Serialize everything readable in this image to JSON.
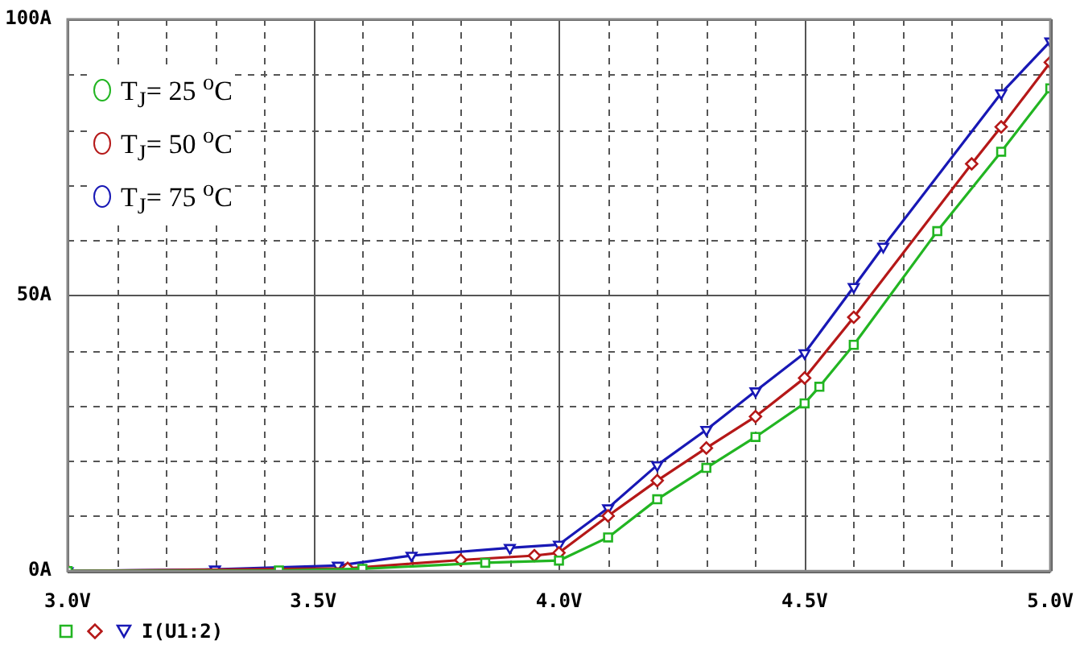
{
  "chart_data": {
    "type": "line",
    "xlim": [
      3.0,
      5.0
    ],
    "xticks": [
      {
        "value": 3.0,
        "label": "3.0V"
      },
      {
        "value": 3.1,
        "label": null
      },
      {
        "value": 3.2,
        "label": null
      },
      {
        "value": 3.3,
        "label": null
      },
      {
        "value": 3.4,
        "label": null
      },
      {
        "value": 3.5,
        "label": "3.5V"
      },
      {
        "value": 3.6,
        "label": null
      },
      {
        "value": 3.7,
        "label": null
      },
      {
        "value": 3.8,
        "label": null
      },
      {
        "value": 3.9,
        "label": null
      },
      {
        "value": 4.0,
        "label": "4.0V"
      },
      {
        "value": 4.1,
        "label": null
      },
      {
        "value": 4.2,
        "label": null
      },
      {
        "value": 4.3,
        "label": null
      },
      {
        "value": 4.4,
        "label": null
      },
      {
        "value": 4.5,
        "label": "4.5V"
      },
      {
        "value": 4.6,
        "label": null
      },
      {
        "value": 4.7,
        "label": null
      },
      {
        "value": 4.8,
        "label": null
      },
      {
        "value": 4.9,
        "label": null
      },
      {
        "value": 5.0,
        "label": "5.0V"
      }
    ],
    "ylim": [
      0,
      100
    ],
    "yticks": [
      {
        "value": 0,
        "label": "0A"
      },
      {
        "value": 10,
        "label": null
      },
      {
        "value": 20,
        "label": null
      },
      {
        "value": 30,
        "label": null
      },
      {
        "value": 40,
        "label": null
      },
      {
        "value": 50,
        "label": "50A"
      },
      {
        "value": 60,
        "label": null
      },
      {
        "value": 70,
        "label": null
      },
      {
        "value": 80,
        "label": null
      },
      {
        "value": 90,
        "label": null
      },
      {
        "value": 100,
        "label": "100A"
      }
    ],
    "grid": true,
    "legend": "top left",
    "line_style": "solid",
    "annotations": [
      "I(U1:2)"
    ],
    "series": [
      {
        "name": "T$_{J}$= 25 $^{o}$C",
        "color": "#22b522",
        "marker": "square",
        "x": [
          3.0,
          3.43,
          3.6,
          3.85,
          4.0,
          4.1,
          4.2,
          4.3,
          4.4,
          4.5,
          4.53,
          4.6,
          4.77,
          4.9,
          5.0
        ],
        "values": [
          0,
          0.1,
          0.4,
          1.5,
          1.9,
          6.1,
          13,
          18.7,
          24.3,
          30.4,
          33.4,
          41,
          61.6,
          76,
          87.5
        ]
      },
      {
        "name": "T$_{J}$= 50 $^{o}$C",
        "color": "#b51818",
        "marker": "diamond",
        "x": [
          3.0,
          3.57,
          3.8,
          3.95,
          4.0,
          4.1,
          4.2,
          4.3,
          4.4,
          4.5,
          4.6,
          4.84,
          4.9,
          5.0
        ],
        "values": [
          0,
          0.5,
          2.0,
          2.8,
          3.3,
          10,
          16.4,
          22.3,
          28,
          35,
          46,
          73.8,
          80.5,
          92.2
        ]
      },
      {
        "name": "T$_{J}$= 75 $^{o}$C",
        "color": "#1818b5",
        "marker": "triangle",
        "x": [
          3.0,
          3.3,
          3.55,
          3.7,
          3.9,
          4.0,
          4.1,
          4.2,
          4.3,
          4.4,
          4.5,
          4.6,
          4.66,
          4.9,
          5.0
        ],
        "values": [
          0,
          0.3,
          1,
          2.8,
          4.2,
          4.8,
          11.4,
          19.2,
          25.6,
          32.6,
          39.5,
          51.5,
          58.8,
          86.6,
          96
        ]
      }
    ]
  }
}
